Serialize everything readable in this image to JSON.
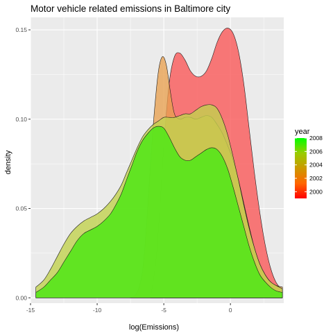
{
  "chart_data": {
    "type": "area",
    "title": "Motor vehicle related emissions in Baltimore city",
    "xlabel": "log(Emissions)",
    "ylabel": "density",
    "xlim": [
      -15.0,
      4.0
    ],
    "ylim": [
      -0.003,
      0.157
    ],
    "x_ticks": [
      -15,
      -10,
      -5,
      0
    ],
    "x_tick_labels": [
      "-15",
      "-10",
      "-5",
      "0"
    ],
    "y_ticks": [
      0.0,
      0.05,
      0.1,
      0.15
    ],
    "y_tick_labels": [
      "0.00",
      "0.05",
      "0.10",
      "0.15"
    ],
    "grid": true,
    "colors": {
      "panel": "#ebebeb",
      "grid": "#ffffff",
      "outline": "#1a1a1a"
    },
    "legend": {
      "title": "year",
      "placement": "right",
      "type": "colorbar",
      "labels": [
        "2008",
        "2006",
        "2004",
        "2002",
        "2000"
      ],
      "values": [
        2008,
        2006,
        2004,
        2002,
        2000
      ],
      "range": [
        1999,
        2008
      ],
      "gradient": [
        "#ff0000",
        "#ff6600",
        "#cc9900",
        "#99cc00",
        "#00ff00"
      ]
    },
    "series": [
      {
        "year": 1999,
        "color": "#fa5555",
        "opacity": 0.78,
        "x": [
          -6.0,
          -5.6,
          -5.3,
          -5.0,
          -4.6,
          -4.2,
          -3.8,
          -3.4,
          -3.0,
          -2.6,
          -2.2,
          -1.8,
          -1.4,
          -1.0,
          -0.6,
          -0.2,
          0.2,
          0.6,
          1.0,
          1.4,
          1.8,
          2.2,
          2.6,
          3.0,
          3.4,
          3.9
        ],
        "y": [
          0.0,
          0.02,
          0.05,
          0.085,
          0.12,
          0.135,
          0.137,
          0.133,
          0.127,
          0.124,
          0.124,
          0.127,
          0.134,
          0.143,
          0.149,
          0.151,
          0.148,
          0.138,
          0.12,
          0.095,
          0.07,
          0.048,
          0.03,
          0.017,
          0.009,
          0.004
        ]
      },
      {
        "year": 2002,
        "color": "#e8a050",
        "opacity": 0.78,
        "x": [
          -7.5,
          -7.0,
          -6.6,
          -6.3,
          -6.0,
          -5.7,
          -5.4,
          -5.1,
          -4.8,
          -4.5,
          -4.2,
          -3.8,
          -3.4,
          -3.0,
          -2.6,
          -2.2,
          -1.8,
          -1.4,
          -1.0,
          -0.6,
          -0.2,
          0.2,
          0.6,
          1.0,
          1.4,
          1.8,
          2.2,
          2.6,
          3.0,
          3.4,
          3.9
        ],
        "y": [
          0.0,
          0.003,
          0.015,
          0.04,
          0.075,
          0.105,
          0.127,
          0.135,
          0.13,
          0.115,
          0.103,
          0.1,
          0.101,
          0.101,
          0.1,
          0.101,
          0.102,
          0.101,
          0.097,
          0.092,
          0.085,
          0.077,
          0.066,
          0.053,
          0.04,
          0.028,
          0.019,
          0.013,
          0.009,
          0.007,
          0.006
        ]
      },
      {
        "year": 2005,
        "color": "#c2d24f",
        "opacity": 0.8,
        "x": [
          -14.6,
          -14.0,
          -13.5,
          -13.0,
          -12.5,
          -12.0,
          -11.5,
          -11.0,
          -10.5,
          -10.0,
          -9.5,
          -9.0,
          -8.6,
          -8.2,
          -7.8,
          -7.4,
          -7.0,
          -6.6,
          -6.2,
          -5.8,
          -5.4,
          -5.0,
          -4.6,
          -4.2,
          -3.8,
          -3.4,
          -3.0,
          -2.6,
          -2.2,
          -1.8,
          -1.4,
          -1.0,
          -0.6,
          -0.2,
          0.2,
          0.6,
          1.0,
          1.4,
          1.8,
          2.2,
          2.6,
          3.0,
          3.4,
          3.9
        ],
        "y": [
          0.006,
          0.01,
          0.016,
          0.023,
          0.03,
          0.036,
          0.04,
          0.043,
          0.045,
          0.047,
          0.05,
          0.054,
          0.058,
          0.063,
          0.07,
          0.077,
          0.084,
          0.09,
          0.094,
          0.097,
          0.099,
          0.101,
          0.101,
          0.101,
          0.102,
          0.103,
          0.103,
          0.105,
          0.107,
          0.108,
          0.108,
          0.106,
          0.1,
          0.091,
          0.079,
          0.066,
          0.052,
          0.039,
          0.028,
          0.019,
          0.013,
          0.009,
          0.007,
          0.005
        ]
      },
      {
        "year": 2008,
        "color": "#55e619",
        "opacity": 0.9,
        "x": [
          -14.6,
          -14.0,
          -13.5,
          -13.0,
          -12.5,
          -12.0,
          -11.5,
          -11.0,
          -10.5,
          -10.0,
          -9.5,
          -9.0,
          -8.6,
          -8.2,
          -7.8,
          -7.4,
          -7.0,
          -6.6,
          -6.2,
          -5.8,
          -5.4,
          -5.0,
          -4.6,
          -4.2,
          -3.8,
          -3.4,
          -3.0,
          -2.6,
          -2.2,
          -1.8,
          -1.4,
          -1.0,
          -0.6,
          -0.2,
          0.2,
          0.6,
          1.0,
          1.4,
          1.8,
          2.2,
          2.6,
          3.0,
          3.4,
          3.9
        ],
        "y": [
          0.003,
          0.006,
          0.01,
          0.014,
          0.02,
          0.026,
          0.032,
          0.036,
          0.038,
          0.04,
          0.043,
          0.047,
          0.052,
          0.058,
          0.066,
          0.074,
          0.082,
          0.088,
          0.092,
          0.095,
          0.096,
          0.095,
          0.09,
          0.084,
          0.079,
          0.077,
          0.077,
          0.079,
          0.081,
          0.083,
          0.084,
          0.083,
          0.079,
          0.072,
          0.062,
          0.051,
          0.04,
          0.029,
          0.02,
          0.013,
          0.009,
          0.006,
          0.004,
          0.003
        ]
      }
    ]
  }
}
